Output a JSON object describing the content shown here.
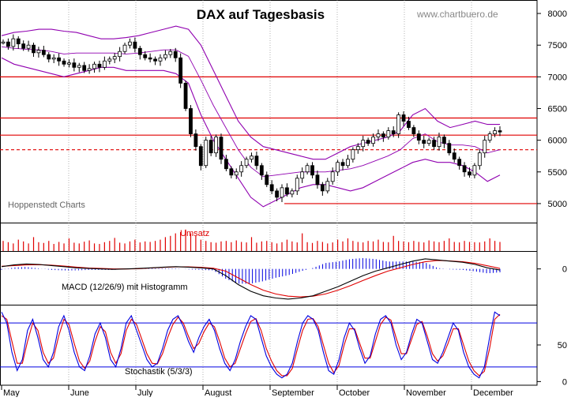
{
  "chart_data": {
    "type": "line",
    "title": "DAX auf Tagesbasis",
    "watermark": "www.chartbuero.de",
    "source_label": "Hoppenstedt Charts",
    "colors": {
      "background": "#ffffff",
      "axis": "#000000",
      "grid": "#808080",
      "resistance": "#e00000",
      "bollinger": "#9000b0",
      "candle": "#000000",
      "volume": "#e00000",
      "macd_line": "#000000",
      "signal_line": "#e00000",
      "histogram": "#0000e0",
      "stoch_k": "#0000e0",
      "stoch_d": "#e00000",
      "stoch_band": "#0000e0",
      "watermark": "#888888"
    },
    "x_axis": {
      "months": [
        "May",
        "June",
        "July",
        "August",
        "September",
        "October",
        "November",
        "December"
      ]
    },
    "price_panel": {
      "y_ticks": [
        8000,
        7500,
        7000,
        6500,
        6000,
        5500,
        5000
      ],
      "ylim": [
        4700,
        8200
      ],
      "horizontal_lines": [
        {
          "value": 7000,
          "style": "solid"
        },
        {
          "value": 6350,
          "style": "solid"
        },
        {
          "value": 6080,
          "style": "solid"
        },
        {
          "value": 5850,
          "style": "dashed"
        },
        {
          "value": 5000,
          "style": "solid",
          "from_month": "September"
        }
      ],
      "close_series": [
        7550,
        7480,
        7600,
        7520,
        7450,
        7500,
        7380,
        7420,
        7350,
        7280,
        7300,
        7250,
        7200,
        7220,
        7150,
        7180,
        7100,
        7130,
        7200,
        7150,
        7250,
        7280,
        7320,
        7400,
        7500,
        7550,
        7450,
        7350,
        7300,
        7280,
        7250,
        7300,
        7350,
        7400,
        7300,
        6900,
        6500,
        6100,
        5900,
        5600,
        6000,
        5800,
        6050,
        5700,
        5550,
        5450,
        5500,
        5600,
        5700,
        5750,
        5600,
        5450,
        5300,
        5200,
        5100,
        5250,
        5150,
        5200,
        5400,
        5500,
        5600,
        5450,
        5300,
        5200,
        5350,
        5500,
        5650,
        5600,
        5700,
        5850,
        5900,
        6000,
        5950,
        6050,
        6100,
        6050,
        6150,
        6100,
        6400,
        6300,
        6200,
        6100,
        6000,
        5950,
        6000,
        5900,
        6050,
        5950,
        5800,
        5700,
        5600,
        5500,
        5450,
        5600,
        5800,
        6000,
        6100,
        6150,
        6130
      ],
      "bollinger_upper": [
        7650,
        7700,
        7720,
        7750,
        7750,
        7720,
        7700,
        7650,
        7600,
        7600,
        7620,
        7650,
        7700,
        7750,
        7800,
        7750,
        7500,
        7100,
        6700,
        6300,
        6050,
        5900,
        5850,
        5800,
        5750,
        5700,
        5700,
        5800,
        5900,
        5950,
        6000,
        6050,
        6150,
        6400,
        6500,
        6300,
        6200,
        6250,
        6300,
        6250,
        6250
      ],
      "bollinger_lower": [
        7300,
        7200,
        7150,
        7100,
        7050,
        7000,
        7050,
        7100,
        7150,
        7150,
        7100,
        7100,
        7100,
        7100,
        7050,
        6900,
        6400,
        6000,
        5700,
        5400,
        5100,
        4950,
        5050,
        5150,
        5250,
        5300,
        5300,
        5250,
        5200,
        5250,
        5350,
        5450,
        5550,
        5650,
        5700,
        5650,
        5650,
        5600,
        5500,
        5350,
        5450
      ]
    },
    "volume_panel": {
      "label": "Umsatz",
      "values": [
        0.4,
        0.35,
        0.3,
        0.45,
        0.38,
        0.3,
        0.55,
        0.35,
        0.32,
        0.4,
        0.28,
        0.36,
        0.3,
        0.5,
        0.33,
        0.3,
        0.37,
        0.42,
        0.3,
        0.28,
        0.35,
        0.4,
        0.52,
        0.33,
        0.3,
        0.38,
        0.45,
        0.34,
        0.38,
        0.36,
        0.4,
        0.45,
        0.55,
        0.6,
        0.7,
        0.75,
        0.85,
        0.7,
        0.6,
        0.45,
        0.4,
        0.35,
        0.33,
        0.38,
        0.4,
        0.35,
        0.42,
        0.36,
        0.34,
        0.55,
        0.33,
        0.38,
        0.4,
        0.35,
        0.3,
        0.35,
        0.45,
        0.38,
        0.34,
        0.7,
        0.35,
        0.32,
        0.4,
        0.36,
        0.3,
        0.34,
        0.45,
        0.38,
        0.5,
        0.4,
        0.36,
        0.34,
        0.4,
        0.38,
        0.45,
        0.36,
        0.35,
        0.6,
        0.4,
        0.38,
        0.35,
        0.4,
        0.36,
        0.34,
        0.42,
        0.38,
        0.35,
        0.4,
        0.5,
        0.36,
        0.34,
        0.4,
        0.36,
        0.35,
        0.34,
        0.38,
        0.5,
        0.4,
        0.36
      ]
    },
    "macd_panel": {
      "label": "MACD (12/26/9) mit Histogramm",
      "y_ticks": [
        0
      ],
      "ylim": [
        -1.6,
        0.8
      ],
      "macd": [
        0.1,
        0.18,
        0.22,
        0.2,
        0.15,
        0.1,
        0.05,
        0.02,
        0.0,
        -0.02,
        0.0,
        0.02,
        0.05,
        0.08,
        0.1,
        0.08,
        0.05,
        0.0,
        -0.3,
        -0.7,
        -1.0,
        -1.2,
        -1.3,
        -1.35,
        -1.3,
        -1.2,
        -1.0,
        -0.8,
        -0.55,
        -0.3,
        -0.1,
        0.05,
        0.2,
        0.35,
        0.45,
        0.4,
        0.35,
        0.3,
        0.2,
        0.05,
        -0.05
      ],
      "signal": [
        0.12,
        0.15,
        0.18,
        0.19,
        0.17,
        0.13,
        0.08,
        0.04,
        0.02,
        0.0,
        0.0,
        0.01,
        0.04,
        0.07,
        0.09,
        0.09,
        0.07,
        0.03,
        -0.1,
        -0.4,
        -0.7,
        -0.95,
        -1.12,
        -1.22,
        -1.25,
        -1.22,
        -1.12,
        -0.95,
        -0.75,
        -0.52,
        -0.3,
        -0.1,
        0.05,
        0.2,
        0.32,
        0.38,
        0.36,
        0.32,
        0.25,
        0.14,
        0.02
      ]
    },
    "stoch_panel": {
      "label": "Stochastik (5/3/3)",
      "y_ticks": [
        50,
        0
      ],
      "ylim": [
        -5,
        105
      ],
      "bands": [
        80,
        20
      ],
      "k": [
        95,
        80,
        40,
        15,
        30,
        70,
        85,
        60,
        30,
        20,
        40,
        75,
        90,
        70,
        40,
        20,
        15,
        35,
        65,
        80,
        60,
        30,
        20,
        45,
        80,
        90,
        70,
        50,
        30,
        20,
        25,
        45,
        70,
        85,
        90,
        75,
        55,
        40,
        60,
        75,
        85,
        70,
        45,
        25,
        15,
        30,
        55,
        75,
        90,
        85,
        60,
        35,
        20,
        10,
        5,
        10,
        25,
        55,
        80,
        90,
        85,
        70,
        40,
        15,
        10,
        30,
        60,
        80,
        70,
        45,
        25,
        35,
        65,
        85,
        90,
        80,
        50,
        30,
        40,
        65,
        85,
        80,
        55,
        30,
        25,
        40,
        60,
        80,
        70,
        40,
        20,
        10,
        5,
        20,
        60,
        95,
        90
      ],
      "d": [
        90,
        85,
        55,
        25,
        25,
        55,
        80,
        70,
        40,
        25,
        32,
        62,
        85,
        78,
        52,
        28,
        18,
        28,
        55,
        75,
        68,
        40,
        25,
        38,
        70,
        85,
        78,
        58,
        38,
        25,
        24,
        38,
        60,
        78,
        88,
        80,
        62,
        45,
        52,
        68,
        80,
        75,
        55,
        32,
        20,
        25,
        45,
        65,
        82,
        86,
        70,
        45,
        28,
        15,
        8,
        8,
        18,
        45,
        70,
        85,
        86,
        75,
        50,
        25,
        12,
        22,
        50,
        72,
        72,
        52,
        32,
        32,
        55,
        78,
        88,
        84,
        60,
        38,
        38,
        58,
        78,
        82,
        62,
        38,
        28,
        35,
        52,
        72,
        72,
        50,
        28,
        15,
        8,
        14,
        45,
        85,
        92
      ]
    }
  }
}
